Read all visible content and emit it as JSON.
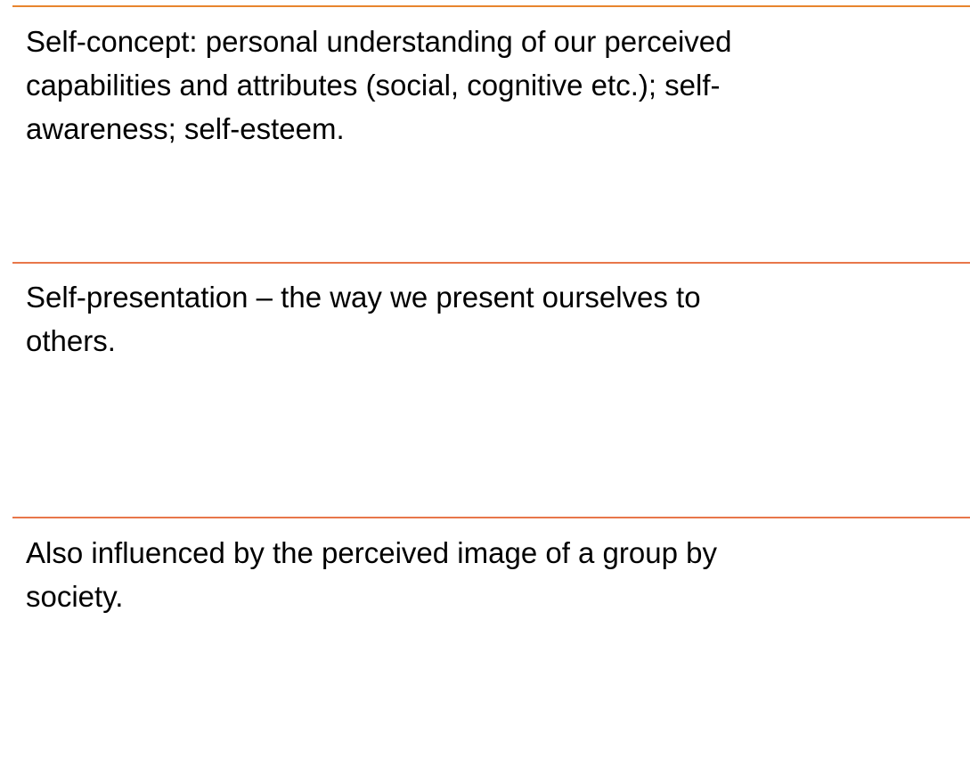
{
  "colors": {
    "divider_top": "#e8852e",
    "divider": "#e8774a"
  },
  "blocks": [
    {
      "lines": [
        "Self-concept: personal understanding of our perceived",
        "capabilities and attributes (social, cognitive etc.); self-",
        "awareness; self-esteem."
      ]
    },
    {
      "lines": [
        "Self-presentation – the way we present ourselves to",
        "others."
      ]
    },
    {
      "lines": [
        "Also influenced by the perceived image of a group by",
        "society."
      ]
    }
  ]
}
